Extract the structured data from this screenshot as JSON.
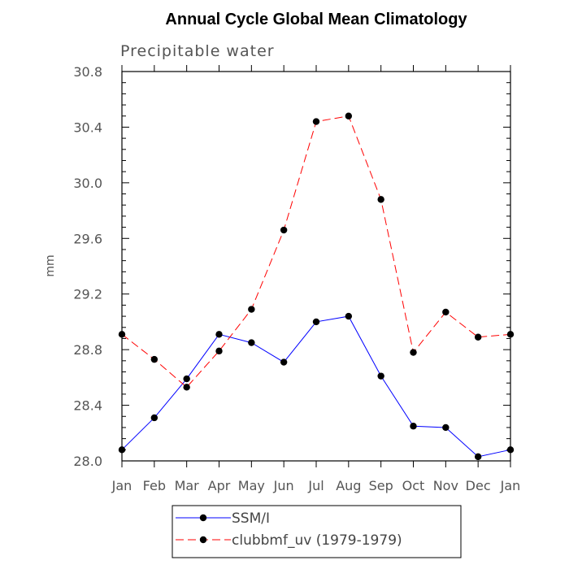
{
  "chart_data": {
    "type": "line",
    "title": "Annual Cycle Global Mean Climatology",
    "subtitle": "Precipitable water",
    "ylabel": "mm",
    "xlabel": "",
    "ylim": [
      28.0,
      30.8
    ],
    "yticks": [
      "28.0",
      "28.4",
      "28.8",
      "29.2",
      "29.6",
      "30.0",
      "30.4",
      "30.8"
    ],
    "categories": [
      "Jan",
      "Feb",
      "Mar",
      "Apr",
      "May",
      "Jun",
      "Jul",
      "Aug",
      "Sep",
      "Oct",
      "Nov",
      "Dec",
      "Jan"
    ],
    "series": [
      {
        "name": "SSM/I",
        "color": "#0000ff",
        "line_style": "solid",
        "marker": "filled-circle",
        "values": [
          28.08,
          28.31,
          28.59,
          28.91,
          28.85,
          28.71,
          29.0,
          29.04,
          28.61,
          28.25,
          28.24,
          28.03,
          28.08
        ]
      },
      {
        "name": "clubbmf_uv (1979-1979)",
        "color": "#ff0000",
        "line_style": "dashed",
        "marker": "filled-circle",
        "values": [
          28.91,
          28.73,
          28.53,
          28.79,
          29.09,
          29.66,
          30.44,
          30.48,
          29.88,
          28.78,
          29.07,
          28.89,
          28.91
        ]
      }
    ],
    "grid": false,
    "legend_position": "bottom"
  }
}
